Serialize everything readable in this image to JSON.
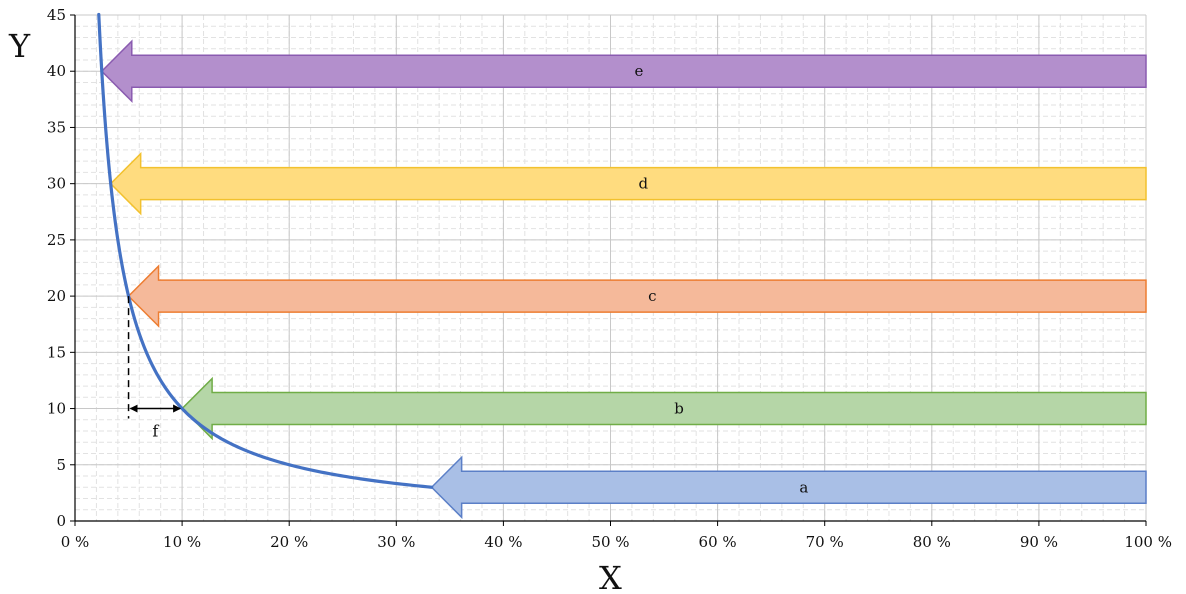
{
  "chart_data": {
    "type": "line",
    "title": "",
    "xlabel": "X",
    "ylabel": "Y",
    "xlim": [
      0,
      100
    ],
    "ylim": [
      0,
      45
    ],
    "x_ticks": [
      0,
      10,
      20,
      30,
      40,
      50,
      60,
      70,
      80,
      90,
      100
    ],
    "x_tick_labels": [
      "0 %",
      "10 %",
      "20 %",
      "30 %",
      "40 %",
      "50 %",
      "60 %",
      "70 %",
      "80 %",
      "90 %",
      "100 %"
    ],
    "y_ticks": [
      0,
      5,
      10,
      15,
      20,
      25,
      30,
      35,
      40,
      45
    ],
    "y_tick_labels": [
      "0",
      "5",
      "10",
      "15",
      "20",
      "25",
      "30",
      "35",
      "40",
      "45"
    ],
    "grid": true,
    "series": [
      {
        "curve": "y = 100 / x",
        "x": [
          2.22,
          2.5,
          3,
          3.33,
          4,
          5,
          6,
          7,
          8,
          10,
          12,
          14,
          16,
          20,
          25,
          30,
          33.3
        ],
        "values": [
          45,
          40,
          33.3,
          30,
          25,
          20,
          16.7,
          14.3,
          12.5,
          10,
          8.33,
          7.14,
          6.25,
          5,
          4,
          3.33,
          3
        ],
        "color": "#4472C4"
      }
    ],
    "arrows": [
      {
        "label": "a",
        "y": 3,
        "x_tip": 33.3,
        "x_end": 100,
        "fill": "#a9bfe6",
        "stroke": "#5b7fc7"
      },
      {
        "label": "b",
        "y": 10,
        "x_tip": 10,
        "x_end": 100,
        "fill": "#b5d6a7",
        "stroke": "#70ad47"
      },
      {
        "label": "c",
        "y": 20,
        "x_tip": 5,
        "x_end": 100,
        "fill": "#f5b99a",
        "stroke": "#ed7d31"
      },
      {
        "label": "d",
        "y": 30,
        "x_tip": 3.33,
        "x_end": 100,
        "fill": "#ffdc7f",
        "stroke": "#f2c12e"
      },
      {
        "label": "e",
        "y": 40,
        "x_tip": 2.5,
        "x_end": 100,
        "fill": "#b38fcc",
        "stroke": "#8a5bb0"
      }
    ],
    "annotation": {
      "label": "f",
      "x_from": 5,
      "x_to": 10,
      "y": 10,
      "dashed_from_y": 20
    }
  }
}
